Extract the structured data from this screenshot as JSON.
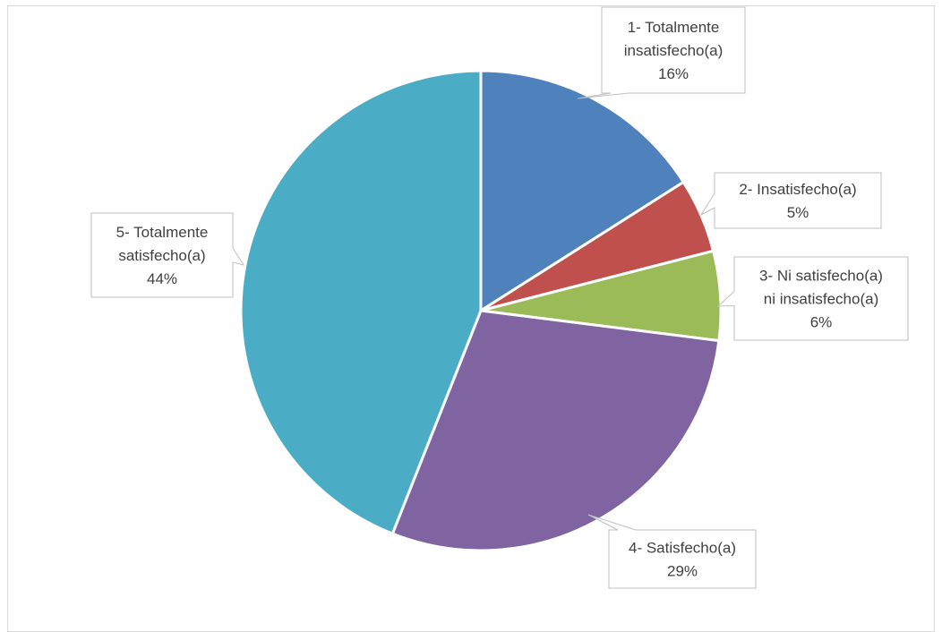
{
  "chart_data": {
    "type": "pie",
    "title": "",
    "slices": [
      {
        "label": "1- Totalmente insatisfecho(a)",
        "label_lines": [
          "1- Totalmente",
          "insatisfecho(a)"
        ],
        "percent_label": "16%",
        "value": 16,
        "color": "#4f81bd"
      },
      {
        "label": "2- Insatisfecho(a)",
        "label_lines": [
          "2- Insatisfecho(a)"
        ],
        "percent_label": "5%",
        "value": 5,
        "color": "#c0504d"
      },
      {
        "label": "3- Ni satisfecho(a) ni insatisfecho(a)",
        "label_lines": [
          "3- Ni satisfecho(a)",
          "ni insatisfecho(a)"
        ],
        "percent_label": "6%",
        "value": 6,
        "color": "#9bbb59"
      },
      {
        "label": "4- Satisfecho(a)",
        "label_lines": [
          "4- Satisfecho(a)"
        ],
        "percent_label": "29%",
        "value": 29,
        "color": "#8064a2"
      },
      {
        "label": "5- Totalmente satisfecho(a)",
        "label_lines": [
          "5- Totalmente",
          "satisfecho(a)"
        ],
        "percent_label": "44%",
        "value": 44,
        "color": "#4bacc6"
      }
    ],
    "start_angle": "12 o'clock",
    "direction": "clockwise",
    "data_labels": "callouts",
    "legend": "none"
  }
}
